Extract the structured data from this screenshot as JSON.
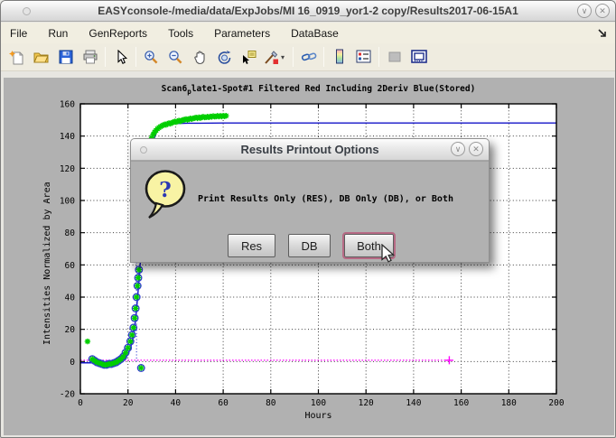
{
  "window": {
    "title": "EASYconsole-/media/data/ExpJobs/MI 16_0919_yor1-2 copy/Results2017-06-15A1",
    "controls": {
      "minimize_glyph": "∨",
      "close_glyph": "✕"
    }
  },
  "menubar": {
    "items": [
      "File",
      "Run",
      "GenReports",
      "Tools",
      "Parameters",
      "DataBase"
    ]
  },
  "toolbar": {
    "icons": [
      "new-file-icon",
      "open-file-icon",
      "save-icon",
      "print-icon",
      "pointer-icon",
      "zoom-in-icon",
      "zoom-out-icon",
      "pan-icon",
      "rotate-3d-icon",
      "data-cursor-icon",
      "brush-icon",
      "link-plots-icon",
      "colorbar-icon",
      "legend-icon",
      "disabled-square-icon",
      "dock-figure-icon"
    ]
  },
  "dialog": {
    "title": "Results Printout Options",
    "question_glyph": "?",
    "message": "Print Results Only (RES), DB Only (DB), or Both",
    "buttons": [
      {
        "label": "Res"
      },
      {
        "label": "DB"
      },
      {
        "label": "Both",
        "focused": true
      }
    ],
    "controls": {
      "minimize_glyph": "∨",
      "close_glyph": "✕"
    }
  },
  "colors": {
    "green_marker": "#00ce00",
    "blue_line": "#1414c8",
    "magenta_line": "#ff00ff",
    "figure_bg": "#b1b1b1",
    "menubar_bg": "#f1eee1",
    "focus_ring": "#b76a85"
  },
  "chart_data": {
    "type": "scatter",
    "title_prefix": "Scan6",
    "title_sub": "p",
    "title_rest": "late1-Spot#1 Filtered Red Including 2Deriv Blue(Stored)",
    "title_full": "Scan6_plate1-Spot#1 Filtered Red Including 2Deriv Blue(Stored)",
    "xlabel": "Hours",
    "ylabel": "Intensities Normalized by Area",
    "xlim": [
      0,
      200
    ],
    "ylim": [
      -20,
      160
    ],
    "xticks": [
      0,
      20,
      40,
      60,
      80,
      100,
      120,
      140,
      160,
      180,
      200
    ],
    "yticks": [
      -20,
      0,
      20,
      40,
      60,
      80,
      100,
      120,
      140,
      160
    ],
    "grid": true,
    "series": [
      {
        "name": "filtered-intensity-green-asterisks",
        "marker": "asterisk",
        "color": "#00ce00",
        "points": [
          [
            3,
            12.5
          ],
          [
            5,
            1.5
          ],
          [
            6,
            0.5
          ],
          [
            7,
            -0.5
          ],
          [
            8,
            -1
          ],
          [
            9,
            -1.5
          ],
          [
            10,
            -2
          ],
          [
            11,
            -2
          ],
          [
            12,
            -1.5
          ],
          [
            13,
            -1.5
          ],
          [
            14,
            -1
          ],
          [
            15,
            -0.5
          ],
          [
            16,
            0.5
          ],
          [
            17,
            1.5
          ],
          [
            18,
            3
          ],
          [
            19,
            5.5
          ],
          [
            20,
            8.5
          ],
          [
            21,
            12.5
          ],
          [
            21.7,
            16.5
          ],
          [
            22.3,
            21
          ],
          [
            22.8,
            27
          ],
          [
            23.2,
            33
          ],
          [
            23.6,
            40
          ],
          [
            24,
            47
          ],
          [
            24.3,
            52
          ],
          [
            24.6,
            57
          ],
          [
            25.5,
            -4
          ],
          [
            30,
            139
          ],
          [
            30.6,
            141
          ],
          [
            31.2,
            142.5
          ],
          [
            31.8,
            143.5
          ],
          [
            32.4,
            144.5
          ],
          [
            33,
            145.2
          ],
          [
            33.6,
            145.8
          ],
          [
            34.2,
            146.3
          ],
          [
            34.8,
            146.8
          ],
          [
            35.4,
            147.2
          ],
          [
            36,
            147
          ],
          [
            36.6,
            147.6
          ],
          [
            37.2,
            148
          ],
          [
            37.8,
            147.7
          ],
          [
            38.4,
            148.2
          ],
          [
            39,
            148.6
          ],
          [
            39.6,
            149
          ],
          [
            40.2,
            148.7
          ],
          [
            40.8,
            149.2
          ],
          [
            41.4,
            149.6
          ],
          [
            42,
            149.2
          ],
          [
            42.6,
            149.7
          ],
          [
            43.2,
            150
          ],
          [
            43.8,
            150.2
          ],
          [
            44.4,
            150.5
          ],
          [
            45,
            150.1
          ],
          [
            45.6,
            150.6
          ],
          [
            46.2,
            150.9
          ],
          [
            46.8,
            150.6
          ],
          [
            47.4,
            151
          ],
          [
            48,
            151.2
          ],
          [
            48.6,
            151.5
          ],
          [
            49.2,
            151.1
          ],
          [
            49.8,
            151.6
          ],
          [
            50.4,
            151.2
          ],
          [
            51,
            151.7
          ],
          [
            51.6,
            152
          ],
          [
            52.2,
            151.6
          ],
          [
            52.8,
            151.7
          ],
          [
            53.4,
            152
          ],
          [
            54,
            151.7
          ],
          [
            54.6,
            152.1
          ],
          [
            55.2,
            152
          ],
          [
            55.8,
            152.4
          ],
          [
            56.4,
            152.1
          ],
          [
            57,
            152.2
          ],
          [
            57.6,
            152.5
          ],
          [
            58.2,
            152.2
          ],
          [
            58.8,
            152.5
          ],
          [
            59.4,
            152.2
          ],
          [
            60,
            152.6
          ],
          [
            60.6,
            152.3
          ],
          [
            61.2,
            152.6
          ]
        ]
      },
      {
        "name": "circled-points-blue",
        "marker": "circle",
        "color": "#2f3bd0",
        "points": [
          [
            5,
            1.5
          ],
          [
            6,
            0.5
          ],
          [
            7,
            -0.5
          ],
          [
            8,
            -1
          ],
          [
            9,
            -1.5
          ],
          [
            10,
            -2
          ],
          [
            11,
            -2
          ],
          [
            12,
            -1.5
          ],
          [
            13,
            -1.5
          ],
          [
            14,
            -1
          ],
          [
            15,
            -0.5
          ],
          [
            16,
            0.5
          ],
          [
            17,
            1.5
          ],
          [
            18,
            3
          ],
          [
            19,
            5.5
          ],
          [
            20,
            8.5
          ],
          [
            21,
            12.5
          ],
          [
            21.7,
            16.5
          ],
          [
            22.3,
            21
          ],
          [
            22.8,
            27
          ],
          [
            23.2,
            33
          ],
          [
            23.6,
            40
          ],
          [
            24,
            47
          ],
          [
            24.3,
            52
          ],
          [
            24.6,
            57
          ],
          [
            25.5,
            -4
          ]
        ]
      },
      {
        "name": "stored-fit-line-blue",
        "marker": "none",
        "color": "#1414c8",
        "points": [
          [
            0,
            -0.8
          ],
          [
            6,
            -0.8
          ],
          [
            10,
            -0.8
          ],
          [
            14,
            -0.6
          ],
          [
            16,
            -0.2
          ],
          [
            18,
            1.2
          ],
          [
            19,
            2.5
          ],
          [
            20,
            4.5
          ],
          [
            21,
            8
          ],
          [
            22,
            14
          ],
          [
            22.8,
            21
          ],
          [
            23.4,
            29
          ],
          [
            24,
            39
          ],
          [
            24.6,
            50
          ],
          [
            25.2,
            62
          ],
          [
            26,
            78
          ],
          [
            27,
            96
          ],
          [
            28,
            111
          ],
          [
            29,
            123
          ],
          [
            30,
            132
          ],
          [
            31,
            138.5
          ],
          [
            32,
            142.5
          ],
          [
            33,
            144.8
          ],
          [
            34,
            146
          ],
          [
            35,
            146.8
          ],
          [
            37,
            147.4
          ],
          [
            40,
            147.8
          ],
          [
            45,
            148
          ],
          [
            50,
            148
          ],
          [
            60,
            148.1
          ],
          [
            80,
            148.1
          ],
          [
            120,
            148.1
          ],
          [
            160,
            148.1
          ],
          [
            200,
            148.1
          ]
        ]
      },
      {
        "name": "inflection-vline-blue-dotted",
        "marker": "none",
        "color": "#2f3bd0",
        "x": 23.6,
        "y1": 0,
        "y2": 75
      },
      {
        "name": "baseline-magenta-dotted",
        "marker": "plus-end",
        "color": "#ff00ff",
        "y": 0.8,
        "x1": 0,
        "x2": 155
      }
    ]
  }
}
